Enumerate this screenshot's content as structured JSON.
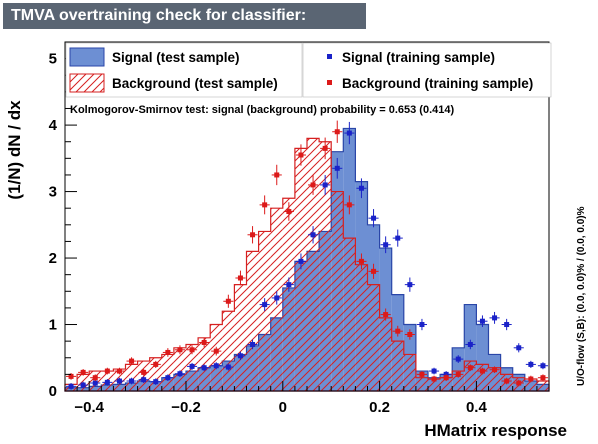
{
  "chart_data": {
    "type": "histogram",
    "title": "TMVA overtraining check for classifier: HMatrix",
    "xlabel": "HMatrix response",
    "ylabel": "(1/N) dN / dx",
    "side_label": "U/O-flow (S,B): (0.0, 0.0)% / (0.0, 0.0)%",
    "ks_text": "Kolmogorov-Smirnov test: signal (background) probability = 0.653 (0.414)",
    "xlim": [
      -0.45,
      0.55
    ],
    "ylim": [
      0,
      5.25
    ],
    "x_ticks": [
      "−0.4",
      "−0.2",
      "0",
      "0.2",
      "0.4"
    ],
    "x_tick_values": [
      -0.4,
      -0.2,
      0,
      0.2,
      0.4
    ],
    "y_ticks": [
      "0",
      "1",
      "2",
      "3",
      "4",
      "5"
    ],
    "y_tick_values": [
      0,
      1,
      2,
      3,
      4,
      5
    ],
    "bin_edges_start": -0.45,
    "bin_width": 0.025,
    "series": [
      {
        "name": "Signal (test sample)",
        "kind": "filled-hist",
        "color": "#6d8fd3",
        "edge": "#2a46a8",
        "values": [
          0.05,
          0.05,
          0.07,
          0.09,
          0.1,
          0.12,
          0.15,
          0.14,
          0.2,
          0.25,
          0.3,
          0.35,
          0.38,
          0.45,
          0.55,
          0.68,
          0.85,
          1.1,
          1.55,
          1.95,
          2.1,
          2.4,
          3.6,
          3.95,
          3.15,
          2.5,
          2.15,
          1.45,
          1.0,
          0.3,
          0.2,
          0.25,
          0.65,
          1.3,
          1.0,
          0.55,
          0.35,
          0.25,
          0.15,
          0.1
        ]
      },
      {
        "name": "Background (test sample)",
        "kind": "hatched-hist",
        "color": "#d62020",
        "values": [
          0.1,
          0.25,
          0.3,
          0.3,
          0.33,
          0.4,
          0.45,
          0.5,
          0.55,
          0.65,
          0.7,
          0.8,
          1.0,
          1.2,
          1.6,
          2.1,
          2.4,
          2.75,
          2.9,
          3.65,
          3.8,
          3.75,
          3.0,
          2.3,
          1.9,
          1.6,
          1.1,
          0.75,
          0.55,
          0.2,
          0.18,
          0.2,
          0.3,
          0.45,
          0.4,
          0.35,
          0.25,
          0.2,
          0.18,
          0.15
        ]
      },
      {
        "name": "Signal (training sample)",
        "kind": "points",
        "color": "#1a22c8",
        "values": [
          0.07,
          0.09,
          0.12,
          0.13,
          0.15,
          0.15,
          0.17,
          0.14,
          0.2,
          0.26,
          0.37,
          0.35,
          0.38,
          0.36,
          0.53,
          0.7,
          1.3,
          1.4,
          1.6,
          1.95,
          2.35,
          3.1,
          3.35,
          3.88,
          3.05,
          2.6,
          2.2,
          2.3,
          1.6,
          1.0,
          0.3,
          0.25,
          0.48,
          0.7,
          1.05,
          1.1,
          1.0,
          0.65,
          0.4,
          0.38
        ]
      },
      {
        "name": "Background (training sample)",
        "kind": "points",
        "color": "#dc1a1a",
        "values": [
          0.22,
          0.28,
          0.2,
          0.3,
          0.3,
          0.45,
          0.28,
          0.4,
          0.58,
          0.62,
          0.62,
          0.73,
          0.6,
          1.35,
          1.7,
          2.35,
          2.8,
          3.25,
          2.7,
          3.55,
          3.1,
          3.65,
          3.9,
          2.8,
          1.95,
          1.8,
          1.15,
          0.9,
          0.85,
          0.25,
          0.18,
          0.2,
          0.25,
          0.35,
          0.3,
          0.32,
          0.15,
          0.12,
          0.18,
          0.2
        ]
      }
    ]
  }
}
